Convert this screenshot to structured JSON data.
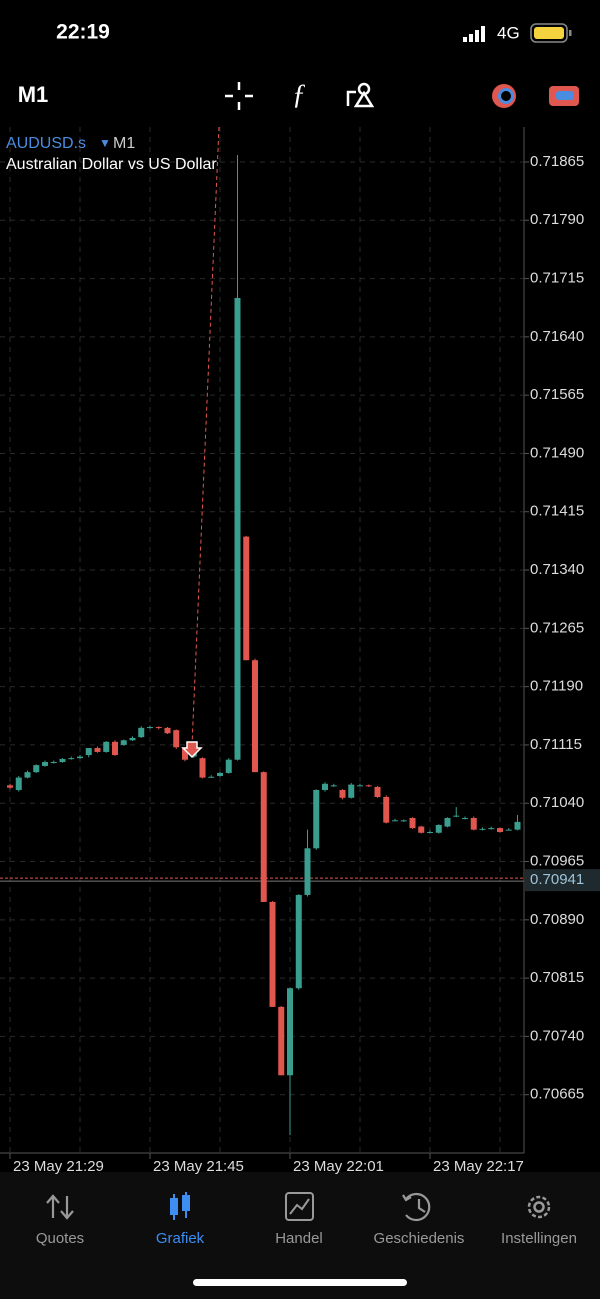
{
  "status_bar": {
    "time": "22:19",
    "network": "4G"
  },
  "toolbar": {
    "timeframe": "M1"
  },
  "chart_data": {
    "type": "candlestick",
    "symbol": "AUDUSD.s",
    "timeframe": "M1",
    "subtitle": "Australian Dollar vs US Dollar",
    "categories": [
      "23 May 21:29",
      null,
      null,
      null,
      null,
      null,
      null,
      null,
      null,
      null,
      null,
      null,
      null,
      null,
      null,
      null,
      "23 May 21:45",
      null,
      null,
      null,
      null,
      null,
      null,
      null,
      null,
      null,
      null,
      null,
      null,
      null,
      null,
      null,
      "23 May 22:01",
      null,
      null,
      null,
      null,
      null,
      null,
      null,
      null,
      null,
      null,
      null,
      null,
      null,
      null,
      null,
      "23 May 22:17",
      null,
      null,
      null,
      null,
      null,
      null,
      null,
      null,
      null,
      null
    ],
    "open": [
      0.71063,
      0.71057,
      0.71073,
      0.7108,
      0.71088,
      0.71093,
      0.71093,
      0.71097,
      0.71098,
      0.71102,
      0.71111,
      0.71106,
      0.71119,
      0.71115,
      0.71121,
      0.71125,
      0.71137,
      0.71138,
      0.71137,
      0.71134,
      0.71111,
      0.711,
      0.71098,
      0.71074,
      0.71075,
      0.71079,
      0.71096,
      0.71383,
      0.71224,
      0.7108,
      0.70913,
      0.70778,
      0.7069,
      0.70802,
      0.70922,
      0.70982,
      0.71057,
      0.71063,
      0.71057,
      0.71047,
      0.71063,
      0.71063,
      0.71061,
      0.71048,
      0.71018,
      0.71018,
      0.71021,
      0.7101,
      0.71003,
      0.71002,
      0.7101,
      0.71024,
      0.71021,
      0.71021,
      0.71007,
      0.71008,
      0.71008,
      0.71006,
      0.71006
    ],
    "high": [
      0.71065,
      0.71075,
      0.71082,
      0.7109,
      0.71095,
      0.71095,
      0.71098,
      0.711,
      0.71102,
      0.71111,
      0.71113,
      0.7112,
      0.71121,
      0.71122,
      0.71126,
      0.71139,
      0.7114,
      0.71139,
      0.71138,
      0.71135,
      0.71112,
      0.71117,
      0.71099,
      0.71076,
      0.7108,
      0.71098,
      0.71874,
      0.71384,
      0.71226,
      0.71081,
      0.70914,
      0.70779,
      0.70803,
      0.70923,
      0.71006,
      0.71058,
      0.71067,
      0.71065,
      0.71058,
      0.71066,
      0.71065,
      0.71064,
      0.71062,
      0.7105,
      0.7102,
      0.71019,
      0.71022,
      0.71011,
      0.71005,
      0.71013,
      0.71022,
      0.71035,
      0.71023,
      0.71023,
      0.71009,
      0.7101,
      0.71009,
      0.71008,
      0.71025
    ],
    "low": [
      0.71058,
      0.71055,
      0.71072,
      0.71079,
      0.71087,
      0.71091,
      0.71092,
      0.71096,
      0.71097,
      0.71099,
      0.71105,
      0.71105,
      0.71101,
      0.71114,
      0.7112,
      0.71124,
      0.71136,
      0.71135,
      0.71129,
      0.7111,
      0.71094,
      0.71098,
      0.71072,
      0.71073,
      0.71074,
      0.71078,
      0.71095,
      0.71224,
      0.7108,
      0.70913,
      0.70778,
      0.7069,
      0.70613,
      0.708,
      0.7092,
      0.7098,
      0.71055,
      0.71061,
      0.71045,
      0.71046,
      0.71062,
      0.71061,
      0.71047,
      0.71014,
      0.71017,
      0.71016,
      0.71007,
      0.71001,
      0.71001,
      0.71001,
      0.71009,
      0.71022,
      0.71019,
      0.71005,
      0.71005,
      0.71006,
      0.71002,
      0.71005,
      0.71005
    ],
    "close": [
      0.7106,
      0.71073,
      0.7108,
      0.71089,
      0.71093,
      0.71093,
      0.71097,
      0.71098,
      0.711,
      0.71111,
      0.71106,
      0.71119,
      0.71102,
      0.71121,
      0.71124,
      0.71137,
      0.71138,
      0.71137,
      0.7113,
      0.71112,
      0.71096,
      0.71115,
      0.71073,
      0.71074,
      0.71079,
      0.71096,
      0.7169,
      0.71224,
      0.7108,
      0.70913,
      0.70778,
      0.7069,
      0.70802,
      0.70922,
      0.70982,
      0.71057,
      0.71065,
      0.71063,
      0.71047,
      0.71064,
      0.71063,
      0.71062,
      0.71048,
      0.71015,
      0.71018,
      0.71018,
      0.71008,
      0.71002,
      0.71003,
      0.71012,
      0.71021,
      0.71024,
      0.71021,
      0.71006,
      0.71007,
      0.71008,
      0.71003,
      0.71006,
      0.71016
    ],
    "up_color": "#3a9e8f",
    "down_color": "#e0574f",
    "current_price": 0.70941,
    "ylim": [
      0.7059,
      0.7191
    ],
    "yticks": [
      0.71865,
      {
        "value": 0.7179,
        "label": "0.71790"
      },
      0.71715,
      {
        "value": 0.7164,
        "label": "0.71640"
      },
      0.71565,
      {
        "value": 0.7149,
        "label": "0.71490"
      },
      0.71415,
      {
        "value": 0.7134,
        "label": "0.71340"
      },
      0.71265,
      {
        "value": 0.7119,
        "label": "0.71190"
      },
      0.71115,
      {
        "value": 0.7104,
        "label": "0.71040"
      },
      0.70965,
      {
        "value": 0.7089,
        "label": "0.70890"
      },
      0.70815,
      {
        "value": 0.7074,
        "label": "0.70740"
      },
      0.70665
    ],
    "grid": true
  },
  "tabs": [
    {
      "label": "Quotes"
    },
    {
      "label": "Grafiek",
      "active": true
    },
    {
      "label": "Handel"
    },
    {
      "label": "Geschiedenis"
    },
    {
      "label": "Instellingen"
    }
  ]
}
